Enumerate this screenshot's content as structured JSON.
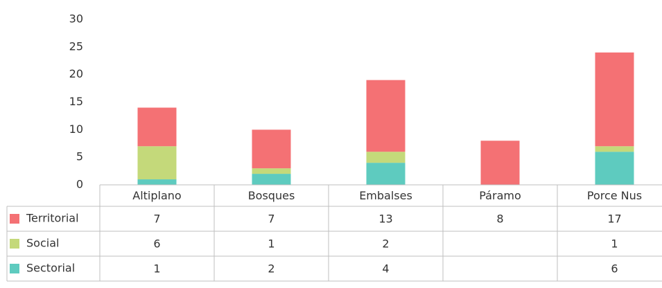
{
  "chart_data": {
    "type": "bar",
    "stacked": true,
    "categories": [
      "Altiplano",
      "Bosques",
      "Embalses",
      "Páramo",
      "Porce Nus"
    ],
    "series": [
      {
        "name": "Territorial",
        "color": "#f47174",
        "values": [
          7,
          7,
          13,
          8,
          17
        ]
      },
      {
        "name": "Social",
        "color": "#c4d97a",
        "values": [
          6,
          1,
          2,
          null,
          1
        ]
      },
      {
        "name": "Sectorial",
        "color": "#5ecbbf",
        "values": [
          1,
          2,
          4,
          null,
          6
        ]
      }
    ],
    "ylim": [
      0,
      30
    ],
    "yticks": [
      0,
      5,
      10,
      15,
      20,
      25,
      30
    ],
    "grid": false,
    "data_table": true
  }
}
